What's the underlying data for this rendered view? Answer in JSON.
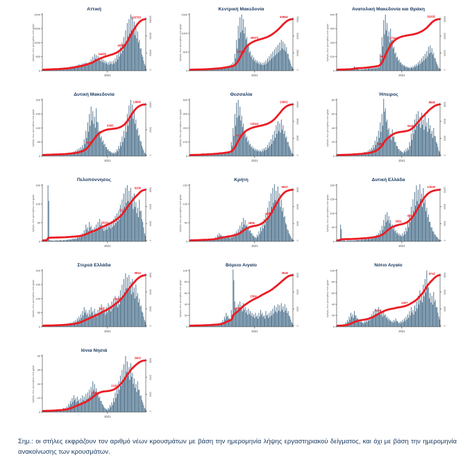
{
  "note": {
    "text": "Σημ.:  οι στήλες εκφράζουν τον αριθμό νέων κρουσμάτων με βάση την ημερομηνία λήψης εργαστηριακού δείγματος, και όχι με βάση την ημερομηνία ανακοίνωσης των κρουσμάτων."
  },
  "colors": {
    "bar": "#557892",
    "line": "#EB1C24",
    "annotation": "#EB1C24",
    "title": "#17375E",
    "axis": "#333333",
    "tick_text": "#444444",
    "axis_label": "#666666",
    "note_text": "#17375E"
  },
  "axes": {
    "x_tick_label": "2021",
    "left_axis_label": "Αριθμός νέων κρουσμάτων ανά ημέρα"
  },
  "chart_data": [
    {
      "type": "bar",
      "region": "Αττική",
      "slug": "attiki",
      "ylabel": "Αριθμός νέων κρουσμάτων ανά ημέρα",
      "ylim": [
        0,
        2000
      ],
      "yticks": [
        0,
        500,
        1000,
        1500,
        2000
      ],
      "right_ticks": [
        "0",
        "40000",
        "80000",
        "120000"
      ],
      "x_tick": "2021",
      "values": [
        20,
        40,
        40,
        60,
        40,
        40,
        60,
        40,
        40,
        60,
        60,
        80,
        80,
        100,
        100,
        120,
        140,
        160,
        160,
        180,
        200,
        240,
        220,
        260,
        280,
        300,
        280,
        320,
        400,
        500,
        600,
        560,
        520,
        480,
        440,
        400,
        360,
        320,
        300,
        340,
        320,
        360,
        440,
        560,
        700,
        840,
        1000,
        1200,
        1440,
        1700,
        1840,
        2000,
        1900,
        1760,
        1600,
        1400,
        1100,
        800,
        500,
        240
      ],
      "annotations": [
        {
          "t": 0.58,
          "label": "34455"
        },
        {
          "t": 0.77,
          "label": "48762"
        },
        {
          "t": 0.96,
          "label": "126763"
        }
      ]
    },
    {
      "type": "bar",
      "region": "Κεντρική Μακεδονία",
      "slug": "kentriki-makedonia",
      "ylabel": "Αριθμός νέων κρουσμάτων ανά ημέρα",
      "ylim": [
        0,
        1500
      ],
      "yticks": [
        0,
        500,
        1000,
        1500
      ],
      "right_ticks": [
        "0",
        "25000",
        "50000",
        "75000"
      ],
      "x_tick": "2021",
      "values": [
        15,
        15,
        30,
        15,
        15,
        30,
        15,
        30,
        30,
        30,
        30,
        45,
        45,
        45,
        60,
        60,
        75,
        75,
        90,
        90,
        105,
        120,
        135,
        150,
        180,
        225,
        450,
        825,
        1200,
        1425,
        1500,
        1380,
        1170,
        900,
        675,
        525,
        420,
        360,
        300,
        270,
        240,
        225,
        210,
        225,
        270,
        330,
        390,
        450,
        510,
        570,
        630,
        690,
        750,
        825,
        780,
        720,
        630,
        450,
        270,
        120
      ],
      "annotations": [
        {
          "t": 0.5,
          "label": "29651"
        },
        {
          "t": 0.63,
          "label": "45972"
        },
        {
          "t": 0.96,
          "label": "83962"
        }
      ]
    },
    {
      "type": "bar",
      "region": "Ανατολική Μακεδονία και Θράκη",
      "slug": "anatoliki-makedonia-thraki",
      "ylabel": "Αριθμός νέων κρουσμάτων ανά ημέρα",
      "ylim": [
        0,
        400
      ],
      "yticks": [
        0,
        100,
        200,
        300,
        400
      ],
      "right_ticks": [
        "0",
        "10000",
        "20000",
        "30000"
      ],
      "x_tick": "2021",
      "values": [
        4,
        4,
        4,
        8,
        4,
        8,
        8,
        8,
        12,
        20,
        32,
        20,
        12,
        8,
        12,
        12,
        16,
        16,
        20,
        20,
        20,
        24,
        24,
        28,
        32,
        120,
        240,
        360,
        400,
        340,
        280,
        300,
        220,
        170,
        130,
        100,
        80,
        60,
        48,
        40,
        32,
        28,
        24,
        28,
        32,
        40,
        48,
        60,
        72,
        88,
        104,
        120,
        140,
        170,
        180,
        160,
        128,
        88,
        48,
        20
      ],
      "annotations": [
        {
          "t": 0.45,
          "label": "9870"
        },
        {
          "t": 0.55,
          "label": "17542"
        },
        {
          "t": 0.96,
          "label": "30335"
        }
      ]
    },
    {
      "type": "bar",
      "region": "Δυτική Μακεδονία",
      "slug": "dytiki-makedonia",
      "ylabel": "Αριθμός νέων κρουσμάτων ανά ημέρα",
      "ylim": [
        0,
        200
      ],
      "yticks": [
        0,
        50,
        100,
        150,
        200
      ],
      "right_ticks": [
        "0",
        "5000",
        "10000"
      ],
      "x_tick": "2021",
      "values": [
        4,
        8,
        6,
        4,
        2,
        4,
        4,
        6,
        4,
        4,
        6,
        6,
        8,
        8,
        10,
        10,
        12,
        14,
        16,
        20,
        24,
        28,
        32,
        40,
        60,
        90,
        120,
        150,
        176,
        160,
        140,
        170,
        120,
        90,
        70,
        56,
        44,
        32,
        24,
        18,
        14,
        12,
        16,
        24,
        36,
        50,
        70,
        90,
        120,
        150,
        180,
        200,
        184,
        160,
        130,
        100,
        76,
        52,
        28,
        12
      ],
      "annotations": [
        {
          "t": 0.45,
          "label": "2871"
        },
        {
          "t": 0.66,
          "label": "6305"
        },
        {
          "t": 0.96,
          "label": "13806"
        }
      ]
    },
    {
      "type": "bar",
      "region": "Θεσσαλία",
      "slug": "thessalia",
      "ylabel": "Αριθμός νέων κρουσμάτων ανά ημέρα",
      "ylim": [
        0,
        400
      ],
      "yticks": [
        0,
        100,
        200,
        300,
        400
      ],
      "right_ticks": [
        "0",
        "8000",
        "16000",
        "24000"
      ],
      "x_tick": "2021",
      "values": [
        4,
        8,
        4,
        4,
        8,
        4,
        8,
        20,
        8,
        8,
        12,
        8,
        12,
        12,
        16,
        16,
        20,
        20,
        24,
        24,
        28,
        28,
        32,
        36,
        100,
        200,
        300,
        380,
        400,
        352,
        288,
        232,
        180,
        140,
        112,
        88,
        72,
        60,
        52,
        48,
        44,
        40,
        48,
        56,
        64,
        80,
        100,
        120,
        152,
        180,
        220,
        248,
        232,
        260,
        220,
        180,
        140,
        100,
        60,
        24
      ],
      "annotations": [
        {
          "t": 0.48,
          "label": "7215"
        },
        {
          "t": 0.63,
          "label": "13024"
        },
        {
          "t": 0.96,
          "label": "24001"
        }
      ]
    },
    {
      "type": "bar",
      "region": "Ήπειρος",
      "slug": "ipeiros",
      "ylabel": "Αριθμός νέων κρουσμάτων ανά ημέρα",
      "ylim": [
        0,
        80
      ],
      "yticks": [
        0,
        20,
        40,
        60,
        80
      ],
      "right_ticks": [
        "0",
        "3000",
        "6000",
        "9000"
      ],
      "x_tick": "2021",
      "values": [
        1,
        1,
        2,
        1,
        2,
        2,
        2,
        2,
        2,
        3,
        4,
        3,
        3,
        4,
        4,
        5,
        6,
        6,
        8,
        10,
        12,
        16,
        22,
        28,
        36,
        48,
        60,
        88,
        68,
        52,
        40,
        32,
        38,
        28,
        20,
        14,
        10,
        8,
        6,
        8,
        10,
        12,
        20,
        32,
        44,
        52,
        60,
        64,
        56,
        62,
        52,
        58,
        48,
        54,
        44,
        36,
        40,
        28,
        18,
        8
      ],
      "annotations": [
        {
          "t": 0.42,
          "label": "3306"
        },
        {
          "t": 0.72,
          "label": "5541"
        },
        {
          "t": 0.96,
          "label": "8945"
        }
      ]
    },
    {
      "type": "bar",
      "region": "Πελοπόννησος",
      "slug": "peloponnisos",
      "ylabel": "Αριθμός νέων κρουσμάτων ανά ημέρα",
      "ylim": [
        0,
        150
      ],
      "yticks": [
        0,
        50,
        100,
        150
      ],
      "right_ticks": [
        "0",
        "3000",
        "6000",
        "9000"
      ],
      "x_tick": "2021",
      "values": [
        2,
        3,
        2,
        150,
        3,
        3,
        2,
        3,
        3,
        3,
        4,
        3,
        4,
        4,
        5,
        6,
        6,
        8,
        8,
        9,
        12,
        15,
        18,
        22,
        30,
        45,
        38,
        52,
        42,
        33,
        38,
        45,
        52,
        60,
        48,
        39,
        42,
        45,
        52,
        48,
        54,
        60,
        68,
        75,
        82,
        98,
        112,
        128,
        143,
        150,
        135,
        143,
        120,
        128,
        105,
        90,
        112,
        82,
        52,
        22
      ],
      "annotations": [
        {
          "t": 0.6,
          "label": "3316"
        },
        {
          "t": 0.78,
          "label": "5214"
        },
        {
          "t": 0.96,
          "label": "9108"
        }
      ]
    },
    {
      "type": "bar",
      "region": "Κρήτη",
      "slug": "kriti",
      "ylabel": "Αριθμός νέων κρουσμάτων ανά ημέρα",
      "ylim": [
        0,
        150
      ],
      "yticks": [
        0,
        50,
        100,
        150
      ],
      "right_ticks": [
        "0",
        "3000",
        "6000",
        "9000"
      ],
      "x_tick": "2021",
      "values": [
        2,
        2,
        3,
        2,
        3,
        3,
        3,
        4,
        3,
        4,
        4,
        5,
        5,
        6,
        8,
        12,
        18,
        22,
        18,
        15,
        12,
        15,
        14,
        12,
        15,
        18,
        22,
        27,
        33,
        42,
        52,
        63,
        57,
        45,
        38,
        30,
        22,
        15,
        12,
        18,
        27,
        38,
        48,
        60,
        75,
        90,
        108,
        128,
        143,
        153,
        135,
        147,
        128,
        112,
        90,
        68,
        45,
        30,
        18,
        8
      ],
      "annotations": [
        {
          "t": 0.6,
          "label": "2806"
        },
        {
          "t": 0.77,
          "label": "4905"
        },
        {
          "t": 0.96,
          "label": "9937"
        }
      ]
    },
    {
      "type": "bar",
      "region": "Δυτική Ελλάδα",
      "slug": "dytiki-ellada",
      "ylabel": "Αριθμός νέων κρουσμάτων ανά ημέρα",
      "ylim": [
        0,
        200
      ],
      "yticks": [
        0,
        50,
        100,
        150,
        200
      ],
      "right_ticks": [
        "0",
        "4000",
        "8000",
        "12000"
      ],
      "x_tick": "2021",
      "values": [
        4,
        6,
        60,
        4,
        4,
        2,
        4,
        4,
        4,
        4,
        4,
        6,
        6,
        6,
        8,
        8,
        10,
        10,
        12,
        12,
        14,
        16,
        20,
        24,
        30,
        40,
        56,
        76,
        96,
        104,
        90,
        76,
        60,
        50,
        40,
        32,
        28,
        24,
        28,
        36,
        50,
        70,
        96,
        124,
        150,
        176,
        200,
        184,
        210,
        170,
        190,
        150,
        120,
        96,
        70,
        50,
        36,
        24,
        16,
        8
      ],
      "annotations": [
        {
          "t": 0.6,
          "label": "3951"
        },
        {
          "t": 0.72,
          "label": "6402"
        },
        {
          "t": 0.96,
          "label": "13026"
        }
      ]
    },
    {
      "type": "bar",
      "region": "Στερεά Ελλάδα",
      "slug": "sterea-ellada",
      "ylabel": "Αριθμός νέων κρουσμάτων ανά ημέρα",
      "ylim": [
        0,
        200
      ],
      "yticks": [
        0,
        50,
        100,
        150,
        200
      ],
      "right_ticks": [
        "0",
        "3000",
        "6000",
        "9000"
      ],
      "x_tick": "2021",
      "values": [
        2,
        6,
        4,
        2,
        4,
        4,
        4,
        6,
        4,
        6,
        6,
        8,
        8,
        10,
        10,
        12,
        14,
        16,
        20,
        24,
        30,
        36,
        44,
        56,
        70,
        60,
        50,
        60,
        70,
        56,
        64,
        50,
        60,
        70,
        80,
        70,
        60,
        70,
        84,
        76,
        90,
        100,
        110,
        96,
        110,
        130,
        150,
        170,
        190,
        176,
        184,
        160,
        170,
        140,
        150,
        120,
        100,
        76,
        50,
        24
      ],
      "annotations": [
        {
          "t": 0.58,
          "label": "3417"
        },
        {
          "t": 0.73,
          "label": "5960"
        },
        {
          "t": 0.96,
          "label": "9844"
        }
      ]
    },
    {
      "type": "bar",
      "region": "Βόρειο Αιγαίο",
      "slug": "voreio-aigaio",
      "ylabel": "Αριθμός νέων κρουσμάτων ανά ημέρα",
      "ylim": [
        0,
        100
      ],
      "yticks": [
        0,
        20,
        40,
        60,
        80,
        100
      ],
      "right_ticks": [
        "0",
        "1000",
        "2000",
        "3000"
      ],
      "x_tick": "2021",
      "values": [
        1,
        1,
        1,
        2,
        1,
        1,
        2,
        1,
        2,
        2,
        2,
        2,
        3,
        3,
        3,
        4,
        4,
        5,
        8,
        12,
        18,
        25,
        20,
        15,
        30,
        115,
        45,
        35,
        40,
        45,
        38,
        42,
        35,
        30,
        32,
        28,
        25,
        22,
        25,
        20,
        25,
        30,
        25,
        20,
        28,
        22,
        25,
        28,
        32,
        38,
        35,
        40,
        38,
        42,
        36,
        40,
        34,
        28,
        18,
        8
      ],
      "annotations": [
        {
          "t": 0.46,
          "label": "1205"
        },
        {
          "t": 0.62,
          "label": "2304"
        },
        {
          "t": 0.96,
          "label": "3949"
        }
      ]
    },
    {
      "type": "bar",
      "region": "Νότιο Αιγαίο",
      "slug": "notio-aigaio",
      "ylabel": "Αριθμός νέων κρουσμάτων ανά ημέρα",
      "ylim": [
        0,
        100
      ],
      "yticks": [
        0,
        20,
        40,
        60,
        80,
        100
      ],
      "right_ticks": [
        "0",
        "2000",
        "4000",
        "6000"
      ],
      "x_tick": "2021",
      "values": [
        1,
        2,
        2,
        3,
        5,
        8,
        12,
        18,
        25,
        22,
        28,
        20,
        15,
        12,
        10,
        8,
        10,
        12,
        15,
        18,
        22,
        28,
        32,
        30,
        35,
        30,
        25,
        28,
        22,
        18,
        15,
        12,
        10,
        12,
        15,
        10,
        8,
        10,
        12,
        15,
        18,
        22,
        28,
        35,
        30,
        38,
        45,
        55,
        65,
        60,
        75,
        85,
        100,
        70,
        60,
        55,
        62,
        48,
        35,
        18
      ],
      "annotations": [
        {
          "t": 0.4,
          "label": "2213"
        },
        {
          "t": 0.66,
          "label": "4307"
        },
        {
          "t": 0.96,
          "label": "6742"
        }
      ]
    },
    {
      "type": "bar",
      "region": "Ιόνια Νησιά",
      "slug": "ionia-nisia",
      "ylabel": "Αριθμός νέων κρουσμάτων ανά ημέρα",
      "ylim": [
        0,
        40
      ],
      "yticks": [
        0,
        10,
        20,
        30,
        40
      ],
      "right_ticks": [
        "0",
        "1000",
        "2000",
        "3000"
      ],
      "x_tick": "2021",
      "values": [
        1,
        1,
        1,
        1,
        1,
        1,
        1,
        1,
        2,
        2,
        2,
        2,
        3,
        3,
        4,
        6,
        8,
        10,
        12,
        10,
        11,
        9,
        10,
        12,
        11,
        13,
        14,
        16,
        18,
        22,
        20,
        17,
        14,
        11,
        8,
        5,
        3,
        2,
        3,
        5,
        7,
        10,
        14,
        18,
        22,
        26,
        30,
        34,
        40,
        36,
        32,
        35,
        28,
        24,
        20,
        22,
        16,
        12,
        7,
        3
      ],
      "annotations": [
        {
          "t": 0.5,
          "label": "1109"
        },
        {
          "t": 0.7,
          "label": "2102"
        },
        {
          "t": 0.96,
          "label": "3403"
        }
      ]
    }
  ]
}
